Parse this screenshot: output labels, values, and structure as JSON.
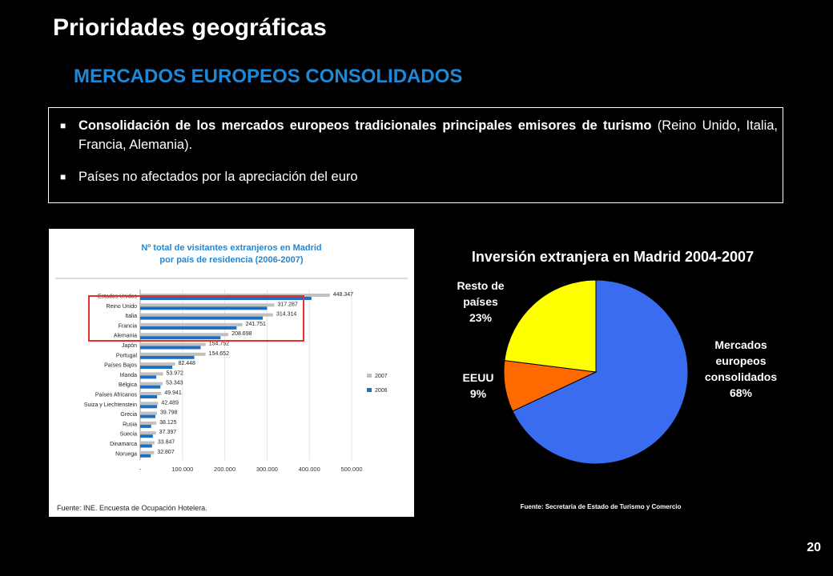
{
  "page": {
    "title": "Prioridades geográficas",
    "subtitle": "MERCADOS EUROPEOS CONSOLIDADOS",
    "page_number": "20"
  },
  "bullets": [
    {
      "marker": "■",
      "bold": "Consolidación de los mercados europeos tradicionales principales emisores de turismo",
      "rest": " (Reino Unido, Italia, Francia, Alemania)."
    },
    {
      "marker": "■",
      "bold": "",
      "rest": "Países no afectados por la apreciación del euro"
    }
  ],
  "colors": {
    "accent": "#1f88d6",
    "highlight": "#e03030"
  },
  "chart_data": [
    {
      "type": "bar",
      "orientation": "horizontal",
      "title": "Nº total de visitantes extranjeros en Madrid por país de residencia (2006-2007)",
      "title_lines": [
        "Nº total de visitantes extranjeros en Madrid",
        "por país de residencia (2006-2007)"
      ],
      "categories": [
        "Estados Unidos",
        "Reino Unido",
        "Italia",
        "Francia",
        "Alemania",
        "Japón",
        "Portugal",
        "Países Bajos",
        "Irlanda",
        "Bélgica",
        "Países Africanos",
        "Suiza y Liechtenstein",
        "Grecia",
        "Rusia",
        "Suecia",
        "Dinamarca",
        "Noruega"
      ],
      "series": [
        {
          "name": "2007",
          "color": "#c0c0c0",
          "values": [
            448347,
            317287,
            314314,
            241751,
            208698,
            154752,
            154652,
            82448,
            53972,
            53343,
            49941,
            42489,
            39798,
            38125,
            37397,
            33847,
            32807
          ]
        },
        {
          "name": "2006",
          "color": "#1f6fbf",
          "values": [
            405000,
            300000,
            290000,
            228000,
            190000,
            143000,
            128000,
            76000,
            38000,
            48000,
            40000,
            40000,
            36000,
            26000,
            30000,
            28000,
            25000
          ]
        }
      ],
      "value_labels": [
        "448.347",
        "317.287",
        "314.314",
        "241.751",
        "208.698",
        "154.752",
        "154.652",
        "82.448",
        "53.972",
        "53.343",
        "49.941",
        "42.489",
        "39.798",
        "38.125",
        "37.397",
        "33.847",
        "32.807"
      ],
      "xlim": [
        0,
        500000
      ],
      "xticks": [
        "-",
        "100.000",
        "200.000",
        "300.000",
        "400.000",
        "500.000"
      ],
      "xtick_values": [
        0,
        100000,
        200000,
        300000,
        400000,
        500000
      ],
      "legend": "right",
      "highlight_group": [
        "Reino Unido",
        "Italia",
        "Francia",
        "Alemania"
      ],
      "source": "Fuente: INE. Encuesta de Ocupación Hotelera."
    },
    {
      "type": "pie",
      "title": "Inversión extranjera en Madrid 2004-2007",
      "slices": [
        {
          "label_lines": [
            "Mercados",
            "europeos",
            "consolidados"
          ],
          "pct_label": "68%",
          "value": 68,
          "color": "#3a6cf0"
        },
        {
          "label_lines": [
            "EEUU"
          ],
          "pct_label": "9%",
          "value": 9,
          "color": "#ff6a00"
        },
        {
          "label_lines": [
            "Resto de",
            "países"
          ],
          "pct_label": "23%",
          "value": 23,
          "color": "#ffff00"
        }
      ],
      "source": "Fuente: Secretaría de Estado de Turismo y Comercio"
    }
  ]
}
